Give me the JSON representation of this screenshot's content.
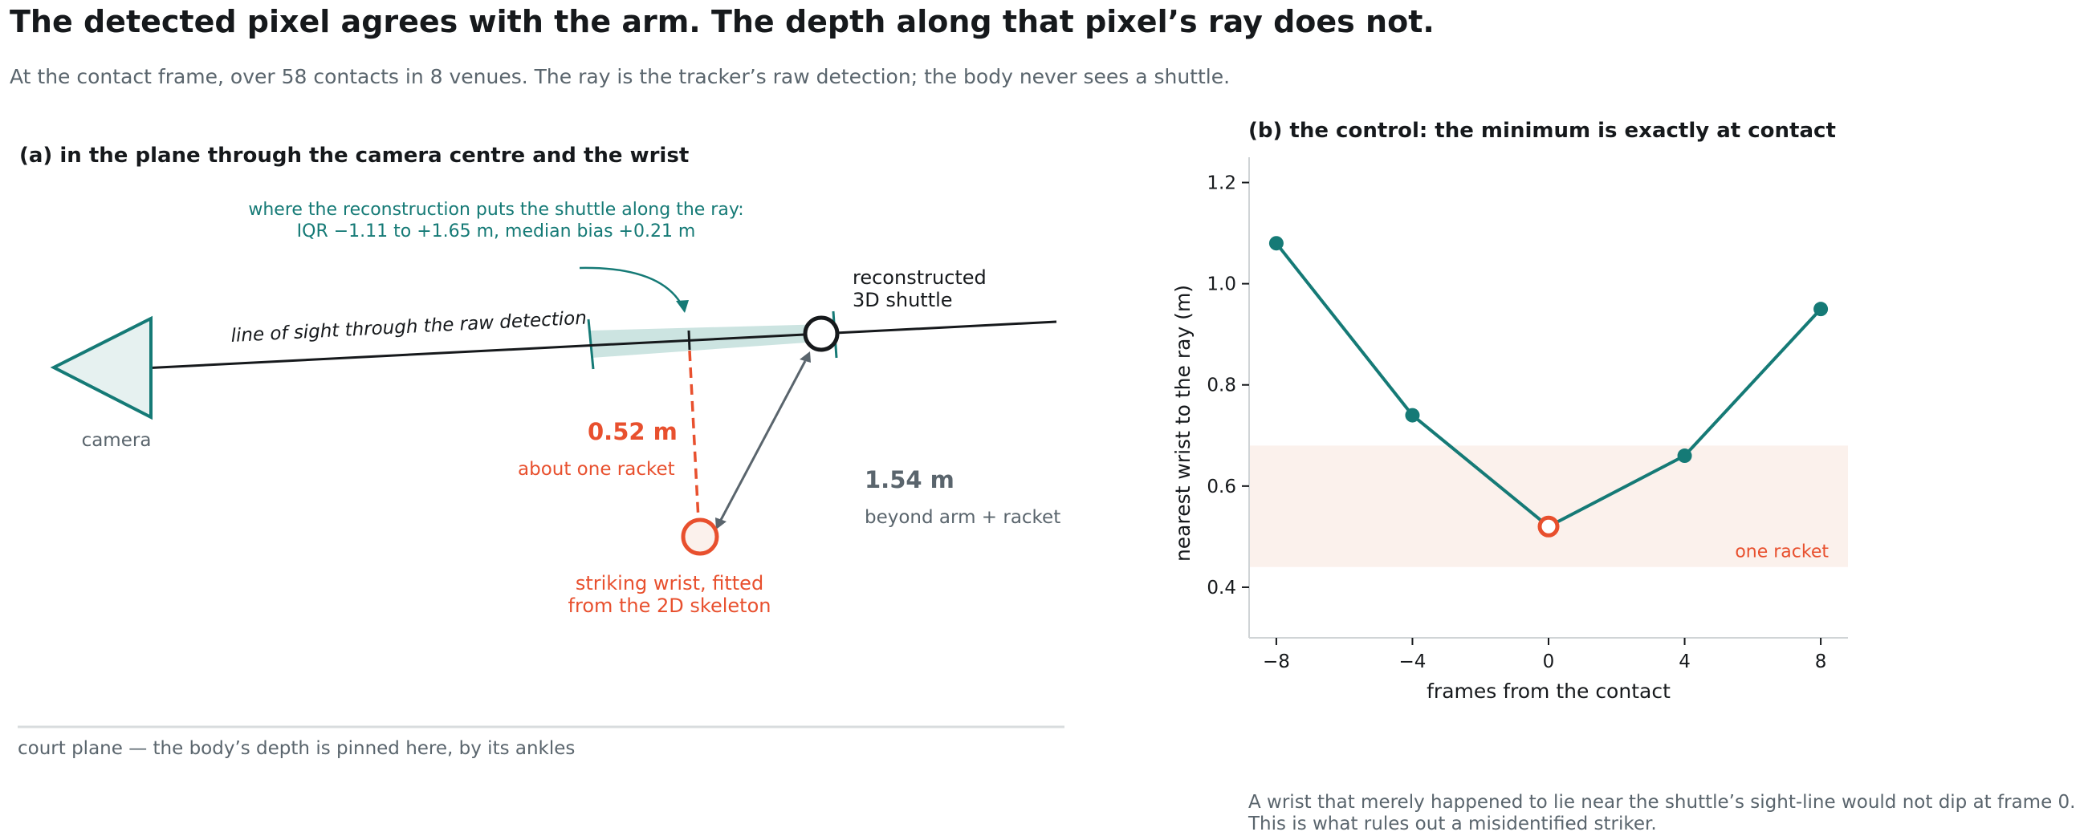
{
  "header": {
    "title": "The detected pixel agrees with the arm. The depth along that pixel’s ray does not.",
    "subtitle": "At the contact frame, over 58 contacts in 8 venues. The ray is the tracker’s raw detection; the body never sees a shuttle."
  },
  "panel_a": {
    "title": "(a)  in the plane through the camera centre and the wrist",
    "annotation_line1": "where the reconstruction puts the shuttle along the ray:",
    "annotation_line2": "IQR −1.11 to +1.65 m, median bias +0.21 m",
    "ray_label": "line of sight through the raw detection",
    "camera_label": "camera",
    "shuttle_label_line1": "reconstructed",
    "shuttle_label_line2": "3D shuttle",
    "perp_distance": "0.52 m",
    "perp_caption": "about one racket",
    "shuttle_distance": "1.54 m",
    "shuttle_caption": "beyond arm + racket",
    "wrist_label_line1": "striking wrist, fitted",
    "wrist_label_line2": "from the 2D skeleton",
    "court_label": "court plane  —  the body’s depth is pinned here, by its ankles"
  },
  "panel_b": {
    "title": "(b)  the control: the minimum is exactly at contact",
    "band_label": "one racket",
    "footnote_line1": "A wrist that merely happened to lie near the shuttle’s sight-line would not dip at frame 0.",
    "footnote_line2": "This is what rules out a misidentified striker."
  },
  "chart_data": {
    "type": "line",
    "xlabel": "frames from the contact",
    "ylabel": "nearest wrist to the ray (m)",
    "x": [
      -8,
      -4,
      0,
      4,
      8
    ],
    "series": [
      {
        "values": [
          1.08,
          0.74,
          0.52,
          0.66,
          0.95
        ]
      }
    ],
    "xticks": [
      -8,
      -4,
      0,
      4,
      8
    ],
    "xtick_labels": [
      "−8",
      "−4",
      "0",
      "4",
      "8"
    ],
    "yticks": [
      0.4,
      0.6,
      0.8,
      1.0,
      1.2
    ],
    "ytick_labels": [
      "0.4",
      "0.6",
      "0.8",
      "1.0",
      "1.2"
    ],
    "xlim": [
      -8.8,
      8.8
    ],
    "ylim": [
      0.3,
      1.25
    ],
    "band": [
      0.44,
      0.68
    ],
    "highlight_x": 0,
    "grid": false,
    "colors": {
      "line": "#157a76",
      "highlight": "#e8502e",
      "band": "#fbf1ec"
    }
  },
  "colors": {
    "teal": "#157a76",
    "orange": "#e8502e",
    "gray": "#5a656d",
    "dark": "#16191c"
  }
}
